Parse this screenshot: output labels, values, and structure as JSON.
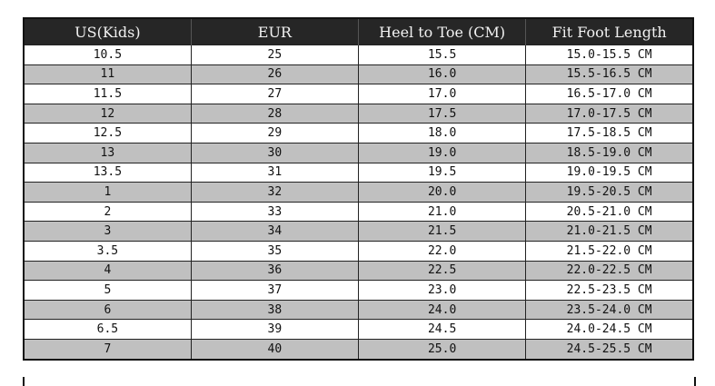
{
  "table": {
    "headers": [
      "US(Kids)",
      "EUR",
      "Heel to Toe (CM)",
      "Fit Foot Length"
    ],
    "rows": [
      [
        "10.5",
        "25",
        "15.5",
        "15.0-15.5 CM"
      ],
      [
        "11",
        "26",
        "16.0",
        "15.5-16.5 CM"
      ],
      [
        "11.5",
        "27",
        "17.0",
        "16.5-17.0 CM"
      ],
      [
        "12",
        "28",
        "17.5",
        "17.0-17.5 CM"
      ],
      [
        "12.5",
        "29",
        "18.0",
        "17.5-18.5 CM"
      ],
      [
        "13",
        "30",
        "19.0",
        "18.5-19.0 CM"
      ],
      [
        "13.5",
        "31",
        "19.5",
        "19.0-19.5 CM"
      ],
      [
        "1",
        "32",
        "20.0",
        "19.5-20.5 CM"
      ],
      [
        "2",
        "33",
        "21.0",
        "20.5-21.0 CM"
      ],
      [
        "3",
        "34",
        "21.5",
        "21.0-21.5 CM"
      ],
      [
        "3.5",
        "35",
        "22.0",
        "21.5-22.0 CM"
      ],
      [
        "4",
        "36",
        "22.5",
        "22.0-22.5 CM"
      ],
      [
        "5",
        "37",
        "23.0",
        "22.5-23.5 CM"
      ],
      [
        "6",
        "38",
        "24.0",
        "23.5-24.0 CM"
      ],
      [
        "6.5",
        "39",
        "24.5",
        "24.0-24.5 CM"
      ],
      [
        "7",
        "40",
        "25.0",
        "24.5-25.5 CM"
      ]
    ],
    "colors": {
      "header_bg": "#262626",
      "header_text": "#f2f2f2",
      "alt_row": "#c0c0c0"
    }
  }
}
